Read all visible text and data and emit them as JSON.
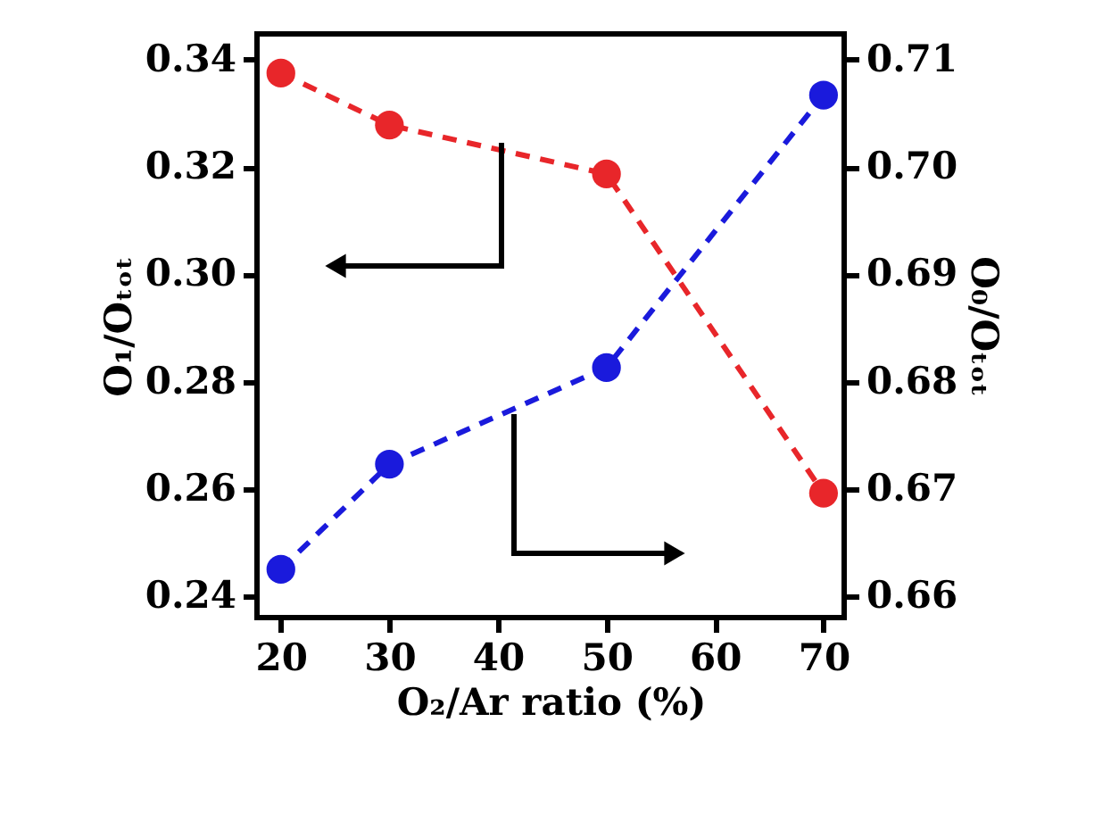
{
  "chart_data": {
    "type": "line",
    "xlabel": "O₂/Ar ratio (%)",
    "ylabel": "O₁/Oₜₒₜ",
    "y2label": "O₀/Oₜₒₜ",
    "x": [
      20,
      30,
      50,
      70
    ],
    "series": [
      {
        "color": "#e8262a",
        "values": [
          0.3375,
          0.3278,
          0.3187,
          0.2592
        ]
      },
      {
        "color": "#1a1adc",
        "axis": "y2",
        "values": [
          0.6625,
          0.6723,
          0.6813,
          0.7067
        ]
      }
    ],
    "xlim": [
      17.8,
      71.9
    ],
    "xticks": [
      20,
      30,
      40,
      50,
      60,
      70
    ],
    "ylim": [
      0.236,
      0.3448
    ],
    "yticks": [
      0.24,
      0.26,
      0.28,
      {
        "value": 0.3,
        "label": "0.30"
      },
      0.32,
      0.34
    ],
    "y2lim": [
      0.658,
      0.7124
    ],
    "y2ticks": [
      0.66,
      0.67,
      0.68,
      0.69,
      {
        "value": 0.7,
        "label": "0.70"
      },
      0.71
    ],
    "marker": "circle",
    "line_style": "dashed",
    "grid": false
  }
}
